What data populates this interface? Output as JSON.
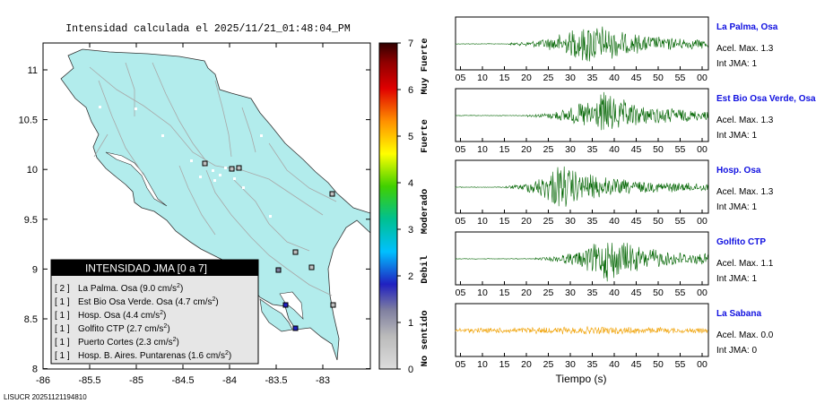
{
  "map": {
    "title": "Intensidad calculada el 2025/11/21_01:48:04_PM",
    "x_ticks": [
      "-86",
      "-85.5",
      "-85",
      "-84.5",
      "-84",
      "-83.5",
      "-83"
    ],
    "y_ticks": [
      "11",
      "10.5",
      "10",
      "9.5",
      "9",
      "8.5",
      "8"
    ],
    "colors": {
      "land": "#b2ecec",
      "roads": "#a8a8a8",
      "sea": "#ffffff"
    },
    "legend": {
      "title": "INTENSIDAD JMA [0 a 7]",
      "items": [
        {
          "count": "[ 2 ]",
          "label": "La Palma. Osa (9.0 cm/s",
          "sup": "2",
          "tail": ")"
        },
        {
          "count": "[ 1 ]",
          "label": "Est Bio Osa Verde. Osa (4.7 cm/s",
          "sup": "2",
          "tail": ")"
        },
        {
          "count": "[ 1 ]",
          "label": "Hosp. Osa (4.4 cm/s",
          "sup": "2",
          "tail": ")"
        },
        {
          "count": "[ 1 ]",
          "label": "Golfito CTP (2.7 cm/s",
          "sup": "2",
          "tail": ")"
        },
        {
          "count": "[ 1 ]",
          "label": "Puerto Cortes (2.3 cm/s",
          "sup": "2",
          "tail": ")"
        },
        {
          "count": "[ 1 ]",
          "label": "Hosp. B. Aires. Puntarenas (1.6 cm/s",
          "sup": "2",
          "tail": ")"
        }
      ]
    }
  },
  "colorbar": {
    "ticks": [
      "7",
      "6",
      "5",
      "4",
      "3",
      "2",
      "1",
      "0"
    ],
    "labels": [
      "Muy Fuerte",
      "Fuerte",
      "Moderado",
      "Debil",
      "No sentido"
    ],
    "gradient": [
      "#dddddd",
      "#bbbbbb",
      "#2020c0",
      "#00c0ff",
      "#00c090",
      "#40d000",
      "#ffff00",
      "#ff9000",
      "#e00000",
      "#900000",
      "#300000"
    ]
  },
  "footer": {
    "code": "LISUCR 20251121194810"
  },
  "traces": {
    "time_ticks": [
      "05",
      "10",
      "15",
      "20",
      "25",
      "30",
      "35",
      "40",
      "45",
      "50",
      "55",
      "00"
    ],
    "xlabel": "Tiempo (s)",
    "items": [
      {
        "station": "La Palma, Osa",
        "accel": "Acel. Max. 1.3",
        "jma": "Int JMA: 1",
        "color": "#006400",
        "onset": 16,
        "peak": 34
      },
      {
        "station": "Est Bio Osa Verde, Osa",
        "accel": "Acel. Max. 1.3",
        "jma": "Int JMA: 1",
        "color": "#006400",
        "onset": 20,
        "peak": 37
      },
      {
        "station": "Hosp. Osa",
        "accel": "Acel. Max. 1.3",
        "jma": "Int JMA: 1",
        "color": "#006400",
        "onset": 15,
        "peak": 27
      },
      {
        "station": "Golfito CTP",
        "accel": "Acel. Max. 1.1",
        "jma": "Int JMA: 1",
        "color": "#006400",
        "onset": 22,
        "peak": 38
      },
      {
        "station": "La Sabana",
        "accel": "Acel. Max. 0.0",
        "jma": "Int JMA: 0",
        "color": "#f0a000",
        "onset": 3,
        "peak": 35
      }
    ]
  }
}
